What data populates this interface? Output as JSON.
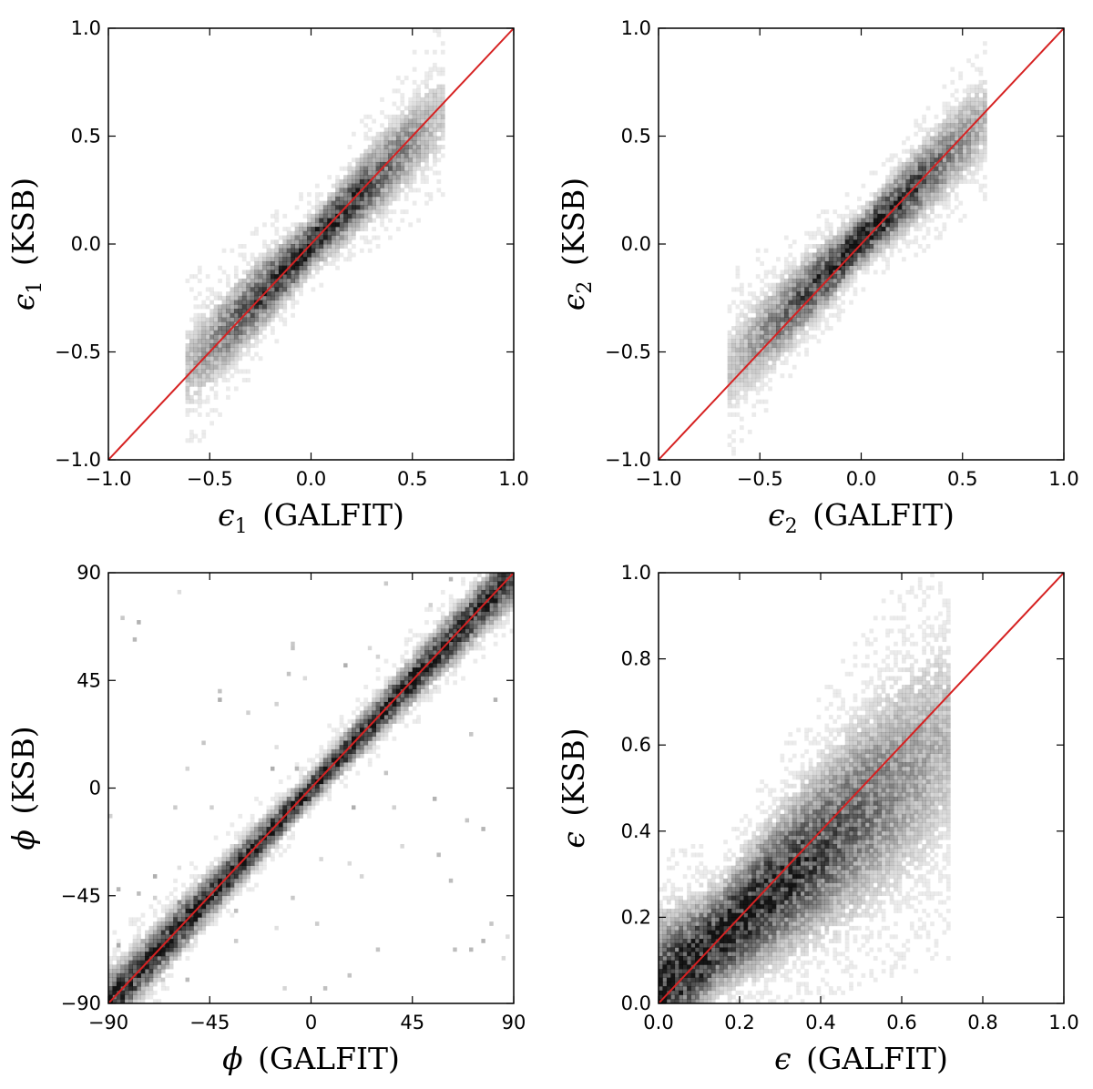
{
  "figure": {
    "background": "#ffffff",
    "line_color": "#d62222",
    "density_color": "#000000"
  },
  "chart_data": [
    {
      "id": "e1",
      "type": "heatmap",
      "description_kind": "2D density histogram with one-to-one line",
      "xlabel": {
        "symbol": "ϵ",
        "sub": "1",
        "text": "(GALFIT)"
      },
      "ylabel": {
        "symbol": "ϵ",
        "sub": "1",
        "text": "(KSB)"
      },
      "xlim": [
        -1.0,
        1.0
      ],
      "ylim": [
        -1.0,
        1.0
      ],
      "xticks": [
        -1.0,
        -0.5,
        0.0,
        0.5,
        1.0
      ],
      "yticks": [
        -1.0,
        -0.5,
        0.0,
        0.5,
        1.0
      ],
      "xtick_labels": [
        "−1.0",
        "−0.5",
        "0.0",
        "0.5",
        "1.0"
      ],
      "ytick_labels": [
        "−1.0",
        "−0.5",
        "0.0",
        "0.5",
        "1.0"
      ],
      "reference_line": {
        "from": [
          -1.0,
          -1.0
        ],
        "to": [
          1.0,
          1.0
        ]
      },
      "density": {
        "x_range": [
          -0.62,
          0.66
        ],
        "slope": 0.95,
        "intercept": 0.0,
        "spread": 0.07,
        "center": 0.0,
        "core_width": 0.22
      }
    },
    {
      "id": "e2",
      "type": "heatmap",
      "description_kind": "2D density histogram with one-to-one line",
      "xlabel": {
        "symbol": "ϵ",
        "sub": "2",
        "text": "(GALFIT)"
      },
      "ylabel": {
        "symbol": "ϵ",
        "sub": "2",
        "text": "(KSB)"
      },
      "xlim": [
        -1.0,
        1.0
      ],
      "ylim": [
        -1.0,
        1.0
      ],
      "xticks": [
        -1.0,
        -0.5,
        0.0,
        0.5,
        1.0
      ],
      "yticks": [
        -1.0,
        -0.5,
        0.0,
        0.5,
        1.0
      ],
      "xtick_labels": [
        "−1.0",
        "−0.5",
        "0.0",
        "0.5",
        "1.0"
      ],
      "ytick_labels": [
        "−1.0",
        "−0.5",
        "0.0",
        "0.5",
        "1.0"
      ],
      "reference_line": {
        "from": [
          -1.0,
          -1.0
        ],
        "to": [
          1.0,
          1.0
        ]
      },
      "density": {
        "x_range": [
          -0.65,
          0.62
        ],
        "slope": 0.92,
        "intercept": 0.02,
        "spread": 0.07,
        "center": 0.0,
        "core_width": 0.22
      }
    },
    {
      "id": "phi",
      "type": "heatmap",
      "description_kind": "2D density histogram with one-to-one line",
      "xlabel": {
        "symbol": "ϕ",
        "sub": "",
        "text": "(GALFIT)"
      },
      "ylabel": {
        "symbol": "ϕ",
        "sub": "",
        "text": "(KSB)"
      },
      "xlim": [
        -90,
        90
      ],
      "ylim": [
        -90,
        90
      ],
      "xticks": [
        -90,
        -45,
        0,
        45,
        90
      ],
      "yticks": [
        -90,
        -45,
        0,
        45,
        90
      ],
      "xtick_labels": [
        "−90",
        "−45",
        "0",
        "45",
        "90"
      ],
      "ytick_labels": [
        "−90",
        "−45",
        "0",
        "45",
        "90"
      ],
      "reference_line": {
        "from": [
          -90,
          -90
        ],
        "to": [
          90,
          90
        ]
      },
      "density": {
        "x_range": [
          -90,
          90
        ],
        "slope": 1.0,
        "intercept": 0.0,
        "spread": 4.0,
        "center": 0.0,
        "core_width": 120,
        "outliers": 0.04
      }
    },
    {
      "id": "e",
      "type": "heatmap",
      "description_kind": "2D density histogram with one-to-one line",
      "xlabel": {
        "symbol": "ϵ",
        "sub": "",
        "text": "(GALFIT)"
      },
      "ylabel": {
        "symbol": "ϵ",
        "sub": "",
        "text": "(KSB)"
      },
      "xlim": [
        0.0,
        1.0
      ],
      "ylim": [
        0.0,
        1.0
      ],
      "xticks": [
        0.0,
        0.2,
        0.4,
        0.6,
        0.8,
        1.0
      ],
      "yticks": [
        0.0,
        0.2,
        0.4,
        0.6,
        0.8,
        1.0
      ],
      "xtick_labels": [
        "0.0",
        "0.2",
        "0.4",
        "0.6",
        "0.8",
        "1.0"
      ],
      "ytick_labels": [
        "0.0",
        "0.2",
        "0.4",
        "0.6",
        "0.8",
        "1.0"
      ],
      "reference_line": {
        "from": [
          0.0,
          0.0
        ],
        "to": [
          1.0,
          1.0
        ]
      },
      "density": {
        "x_range": [
          0.0,
          0.72
        ],
        "slope": 0.82,
        "intercept": 0.03,
        "spread": 0.07,
        "center": 0.15,
        "core_width": 0.2
      }
    }
  ]
}
